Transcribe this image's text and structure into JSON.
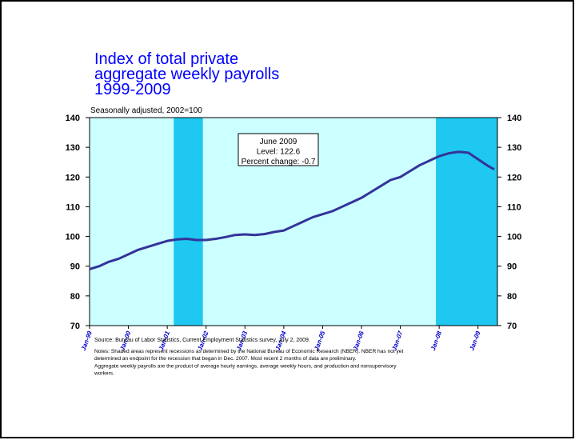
{
  "chart_data": {
    "type": "line",
    "title": [
      "Index of total private",
      "aggregate weekly payrolls",
      "1999-2009"
    ],
    "subtitle": "Seasonally adjusted, 2002=100",
    "x": [
      1999,
      1999.25,
      1999.5,
      1999.75,
      2000,
      2000.25,
      2000.5,
      2000.75,
      2001,
      2001.25,
      2001.5,
      2001.75,
      2002,
      2002.25,
      2002.5,
      2002.75,
      2003,
      2003.25,
      2003.5,
      2003.75,
      2004,
      2004.25,
      2004.5,
      2004.75,
      2005,
      2005.25,
      2005.5,
      2005.75,
      2006,
      2006.25,
      2006.5,
      2006.75,
      2007,
      2007.25,
      2007.5,
      2007.75,
      2008,
      2008.25,
      2008.5,
      2008.75,
      2009,
      2009.25,
      2009.417
    ],
    "series": [
      {
        "name": "Index of total private aggregate weekly payrolls",
        "color": "#333399",
        "values": [
          89,
          90,
          91.5,
          92.5,
          94,
          95.5,
          96.5,
          97.5,
          98.5,
          99,
          99.2,
          98.8,
          98.8,
          99.2,
          99.8,
          100.5,
          100.7,
          100.5,
          100.8,
          101.5,
          102,
          103.5,
          105,
          106.5,
          107.5,
          108.5,
          110,
          111.5,
          113,
          115,
          117,
          119,
          120,
          122,
          124,
          125.5,
          127,
          128,
          128.5,
          128.2,
          126,
          123.8,
          122.6
        ]
      }
    ],
    "recessions": [
      [
        2001.167,
        2001.917
      ],
      [
        2007.917,
        2009.5
      ]
    ],
    "xlim": [
      1999,
      2009.5
    ],
    "xticks": [
      {
        "value": 1999,
        "label": "Jan-99"
      },
      {
        "value": 2000,
        "label": "Jan-00"
      },
      {
        "value": 2001,
        "label": "Jan-01"
      },
      {
        "value": 2002,
        "label": "Jan-02"
      },
      {
        "value": 2003,
        "label": "Jan-03"
      },
      {
        "value": 2004,
        "label": "Jan-04"
      },
      {
        "value": 2005,
        "label": "Jan-05"
      },
      {
        "value": 2006,
        "label": "Jan-06"
      },
      {
        "value": 2007,
        "label": "Jan-07"
      },
      {
        "value": 2008,
        "label": "Jan-08"
      },
      {
        "value": 2009,
        "label": "Jan-09"
      }
    ],
    "ylim": [
      70,
      140
    ],
    "yticks": [
      70,
      80,
      90,
      100,
      110,
      120,
      130,
      140
    ],
    "annotation": [
      "June 2009",
      "Level: 122.6",
      "Percent change: -0.7"
    ],
    "source": "Source:  Bureau of Labor Statistics, Current Employment Statistics survey, July 2, 2009.",
    "notes": [
      "Notes: Shaded areas represent recessions as determined by the National Bureau of Economic Research (NBER). NBER has not yet",
      "determined an endpoint for the recession that began in Dec. 2007. Most recent 2 months of data are preliminary.",
      "Aggregate weekly payrolls are the product of average hourly earnings, average weekly hours, and production and nonsupervisory",
      "workers."
    ]
  }
}
